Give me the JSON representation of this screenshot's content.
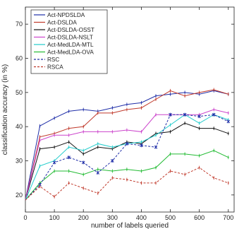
{
  "chart_data": {
    "type": "line",
    "title": "",
    "xlabel": "number of labels queried",
    "ylabel": "classification accuracy (in %)",
    "xlim": [
      0,
      720
    ],
    "ylim": [
      15,
      75
    ],
    "xticks": [
      0,
      100,
      200,
      300,
      400,
      500,
      600,
      700
    ],
    "yticks": [
      20,
      30,
      40,
      50,
      60,
      70
    ],
    "grid": false,
    "legend_position": "top-left",
    "x": [
      0,
      50,
      100,
      150,
      200,
      250,
      300,
      350,
      400,
      450,
      500,
      550,
      600,
      650,
      700
    ],
    "series": [
      {
        "name": "Act-NPDSLDA",
        "color": "#1f2ea8",
        "style": "solid",
        "marker": "",
        "values": [
          18.5,
          40.2,
          42.5,
          44.5,
          45.0,
          44.5,
          45.5,
          46.5,
          47.0,
          49.0,
          49.5,
          50.0,
          49.5,
          50.5,
          49.5
        ]
      },
      {
        "name": "Act-DSLDA",
        "color": "#c0392b",
        "style": "solid",
        "marker": "",
        "values": [
          18.5,
          37.0,
          38.0,
          39.5,
          40.0,
          44.0,
          44.0,
          45.0,
          45.5,
          48.0,
          50.5,
          49.0,
          50.0,
          50.8,
          49.5
        ]
      },
      {
        "name": "Act-DSLDA-OSST",
        "color": "#111111",
        "style": "solid",
        "marker": "",
        "values": [
          18.5,
          33.5,
          34.0,
          35.5,
          32.0,
          34.0,
          33.5,
          35.5,
          35.0,
          38.0,
          38.5,
          41.0,
          39.5,
          39.5,
          38.0
        ]
      },
      {
        "name": "Act-DSLDA-NSLT",
        "color": "#cc44cc",
        "style": "solid",
        "marker": "",
        "values": [
          18.5,
          36.0,
          37.5,
          37.5,
          38.5,
          38.5,
          38.5,
          39.0,
          38.5,
          43.5,
          43.5,
          43.5,
          43.5,
          45.0,
          44.0
        ]
      },
      {
        "name": "Act-MedLDA-MTL",
        "color": "#22cccc",
        "style": "solid",
        "marker": "",
        "values": [
          18.5,
          28.5,
          30.0,
          34.0,
          33.0,
          35.0,
          34.0,
          35.0,
          35.5,
          37.5,
          40.5,
          43.5,
          41.0,
          43.5,
          42.0
        ]
      },
      {
        "name": "Act-MedLDA-OVA",
        "color": "#22bb33",
        "style": "solid",
        "marker": "",
        "values": [
          18.5,
          23.5,
          27.0,
          27.0,
          26.0,
          27.5,
          27.0,
          27.5,
          27.0,
          28.0,
          32.0,
          32.0,
          31.5,
          33.0,
          31.0
        ]
      },
      {
        "name": "RSC",
        "color": "#1f2ea8",
        "style": "dashed",
        "marker": "x",
        "values": [
          18.5,
          23.0,
          29.5,
          31.0,
          29.5,
          26.5,
          30.0,
          35.0,
          34.5,
          34.0,
          43.5,
          43.5,
          43.0,
          43.5,
          41.5
        ]
      },
      {
        "name": "RSCA",
        "color": "#c0392b",
        "style": "dashed",
        "marker": "",
        "values": [
          18.5,
          22.5,
          19.5,
          23.5,
          22.0,
          20.5,
          25.0,
          24.5,
          23.5,
          23.5,
          27.0,
          26.0,
          28.0,
          25.0,
          23.5
        ]
      }
    ]
  }
}
